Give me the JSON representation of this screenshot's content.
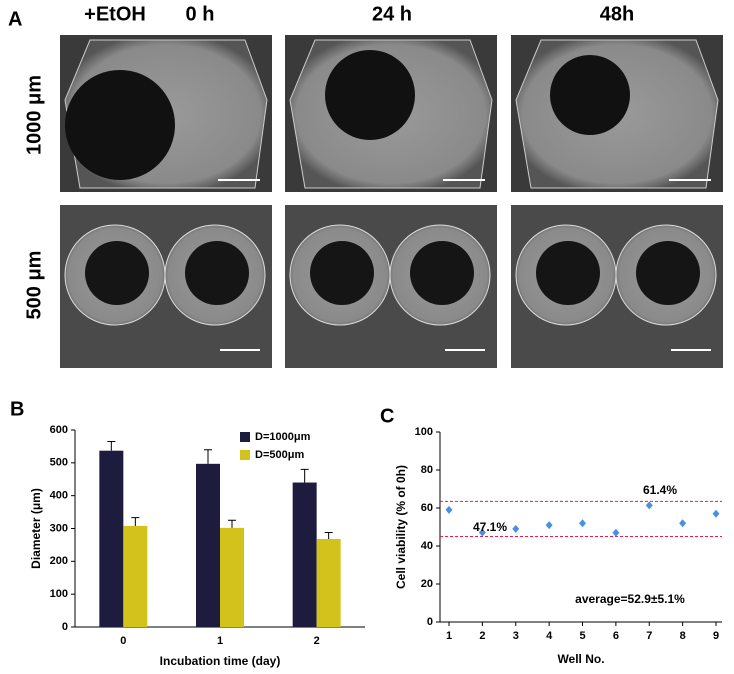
{
  "panel_a": {
    "label": "A",
    "column_headers": [
      "+EtOH",
      "0 h",
      "24 h",
      "48h"
    ],
    "row_labels": [
      "1000 μm",
      "500 μm"
    ]
  },
  "chart_data": [
    {
      "type": "bar",
      "panel_label": "B",
      "x_label": "Incubation time (day)",
      "y_label": "Diameter (μm)",
      "categories": [
        "0",
        "1",
        "2"
      ],
      "series": [
        {
          "name": "D=1000μm",
          "color": "#1d1c3e",
          "values": [
            537,
            497,
            440
          ],
          "errors": [
            28,
            43,
            40
          ]
        },
        {
          "name": "D=500μm",
          "color": "#d3c11c",
          "values": [
            308,
            302,
            268
          ],
          "errors": [
            25,
            23,
            20
          ]
        }
      ],
      "ylim": [
        0,
        600
      ],
      "yticks": [
        0,
        100,
        200,
        300,
        400,
        500,
        600
      ],
      "legend": "top-right"
    },
    {
      "type": "scatter",
      "panel_label": "C",
      "x_label": "Well No.",
      "y_label": "Cell viability (% of 0h)",
      "x": [
        1,
        2,
        3,
        4,
        5,
        6,
        7,
        8,
        9
      ],
      "series": [
        {
          "color": "#4a90e2",
          "values": [
            59,
            47.1,
            49,
            51,
            52,
            47,
            61.4,
            52,
            57
          ]
        }
      ],
      "reference_lines": [
        63.5,
        45
      ],
      "reference_color": "#e0204a",
      "annotations": [
        "61.4%",
        "47.1%",
        "average=52.9±5.1%"
      ],
      "xlim": [
        1,
        9
      ],
      "xticks": [
        1,
        2,
        3,
        4,
        5,
        6,
        7,
        8,
        9
      ],
      "ylim": [
        0,
        100
      ],
      "yticks": [
        0,
        20,
        40,
        60,
        80,
        100
      ]
    }
  ]
}
